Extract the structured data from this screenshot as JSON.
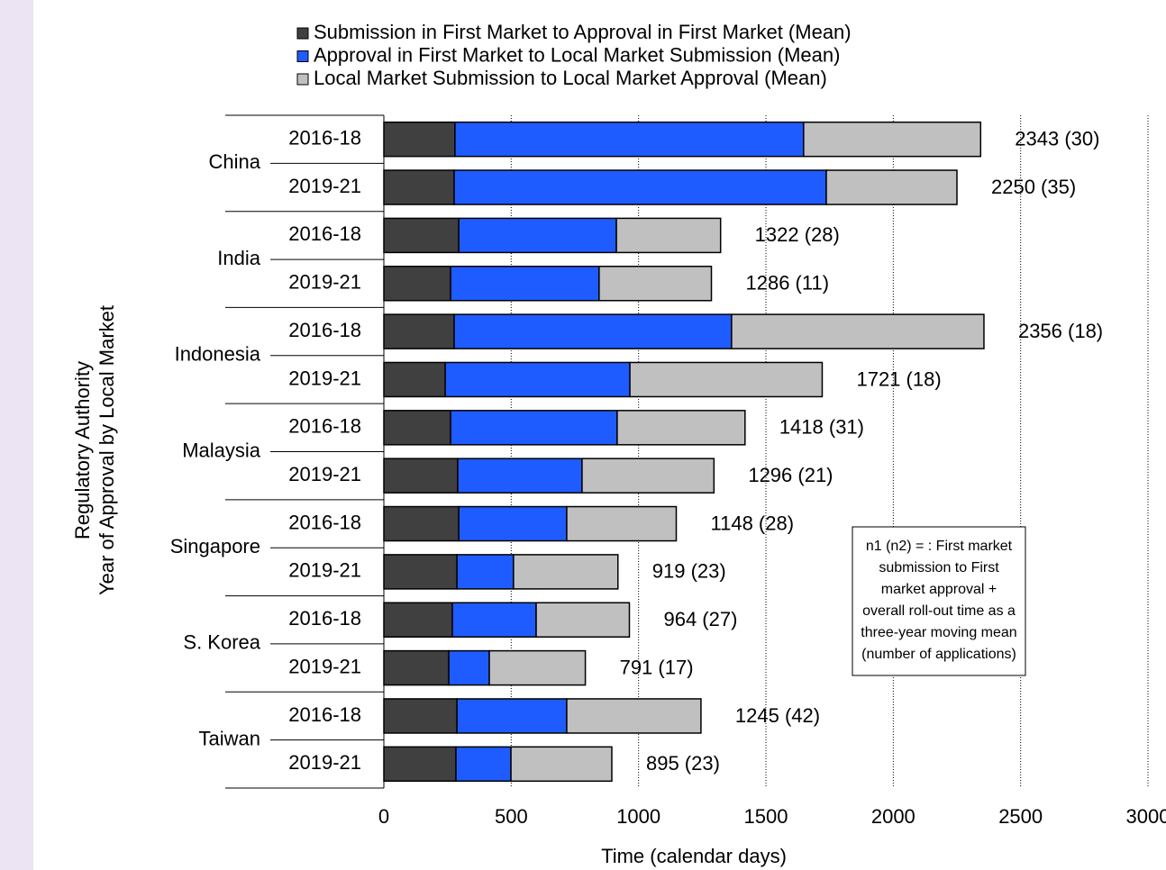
{
  "chart_data": {
    "type": "stacked-barh",
    "x_label": "Time (calendar days)",
    "y_label": [
      "Regulatory Authority",
      "Year of Approval by Local Market"
    ],
    "groups": [
      "China",
      "India",
      "Indonesia",
      "Malaysia",
      "Singapore",
      "S. Korea",
      "Taiwan"
    ],
    "categories": [
      "2016-18",
      "2019-21",
      "2016-18",
      "2019-21",
      "2016-18",
      "2019-21",
      "2016-18",
      "2019-21",
      "2016-18",
      "2019-21",
      "2016-18",
      "2019-21",
      "2016-18",
      "2019-21"
    ],
    "series": [
      {
        "name": "Submission in First Market to Approval in First Market (Mean)",
        "color": "#404040",
        "values": [
          279,
          276,
          294,
          262,
          276,
          241,
          262,
          290,
          294,
          287,
          269,
          255,
          287,
          283
        ]
      },
      {
        "name": "Approval in First Market to Local Market Submission (Mean)",
        "color": "#1f5cff",
        "values": [
          1369,
          1461,
          619,
          583,
          1089,
          725,
          654,
          488,
          424,
          222,
          329,
          159,
          431,
          216
        ]
      },
      {
        "name": "Local Market Submission to Local Market Approval (Mean)",
        "color": "#c0c0c0",
        "values": [
          695,
          513,
          409,
          441,
          991,
          755,
          502,
          518,
          430,
          410,
          366,
          377,
          527,
          396
        ]
      }
    ],
    "bar_labels": [
      "2343 (30)",
      "2250 (35)",
      "1322 (28)",
      "1286 (11)",
      "2356 (18)",
      "1721 (18)",
      "1418 (31)",
      "1296 (21)",
      "1148 (28)",
      "919 (23)",
      "964 (27)",
      "791 (17)",
      "1245 (42)",
      "895 (23)"
    ],
    "note": [
      "n1 (n2) = : First market",
      "submission to First",
      "market approval +",
      "overall roll-out time as a",
      "three-year moving mean",
      "(number of applications)"
    ],
    "xlim": [
      0,
      3000
    ],
    "xticks": [
      0,
      500,
      1000,
      1500,
      2000,
      2500,
      3000
    ],
    "grid": true
  }
}
